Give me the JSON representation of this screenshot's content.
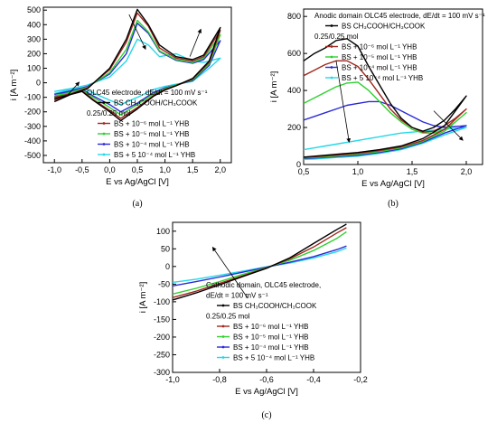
{
  "colors": {
    "series": [
      "#000000",
      "#a0281e",
      "#2fd02f",
      "#2a2ad8",
      "#25d7e8"
    ],
    "axis": "#000000"
  },
  "chart_data": [
    {
      "type": "line",
      "panel": "(a)",
      "xlabel": "E vs Ag/AgCl [V]",
      "ylabel": "i [A m⁻²]",
      "xlim": [
        -1.2,
        2.2
      ],
      "ylim": [
        -550,
        520
      ],
      "xticks": [
        -1.0,
        -0.5,
        0.0,
        0.5,
        1.0,
        1.5,
        2.0
      ],
      "xtick_labels": [
        "-1,0",
        "-0,5",
        "0,0",
        "0,5",
        "1,0",
        "1,5",
        "2,0"
      ],
      "yticks": [
        -500,
        -400,
        -300,
        -200,
        -100,
        0,
        100,
        200,
        300,
        400,
        500
      ],
      "ytick_labels": [
        "-500",
        "-400",
        "-300",
        "-200",
        "-100",
        "0",
        "100",
        "200",
        "300",
        "400",
        "500"
      ],
      "legend_title": [
        "OLC45 electrode, dE/dt = 100 mV s⁻¹",
        "0.25/0.25 mol"
      ],
      "legend_position": "lower-right",
      "series": [
        {
          "name": "BS CH₃COOH/CH₃COOK",
          "x": [
            -1.0,
            -0.7,
            -0.4,
            0.0,
            0.3,
            0.5,
            0.7,
            0.9,
            1.2,
            1.5,
            1.7,
            2.0,
            1.8,
            1.5,
            1.2,
            1.0,
            0.8,
            0.5,
            0.2,
            0.0,
            -0.3,
            -0.5,
            -0.7,
            -1.0
          ],
          "y": [
            -110,
            -80,
            -40,
            100,
            300,
            505,
            400,
            260,
            180,
            160,
            190,
            380,
            150,
            30,
            -20,
            -50,
            -90,
            -180,
            -260,
            -200,
            -120,
            -60,
            -80,
            -130
          ]
        },
        {
          "name": "BS + 10⁻⁶ mol L⁻¹ YHB",
          "x": [
            -1.0,
            -0.7,
            -0.4,
            0.0,
            0.3,
            0.5,
            0.7,
            0.9,
            1.2,
            1.5,
            1.7,
            2.0,
            1.8,
            1.5,
            1.2,
            1.0,
            0.8,
            0.5,
            0.2,
            0.0,
            -0.3,
            -0.5,
            -0.7,
            -1.0
          ],
          "y": [
            -100,
            -75,
            -35,
            90,
            280,
            480,
            390,
            240,
            170,
            150,
            180,
            360,
            140,
            25,
            -20,
            -45,
            -85,
            -170,
            -245,
            -190,
            -115,
            -55,
            -75,
            -120
          ]
        },
        {
          "name": "BS + 10⁻⁵ mol L⁻¹ YHB",
          "x": [
            -1.0,
            -0.7,
            -0.4,
            0.0,
            0.3,
            0.5,
            0.7,
            0.9,
            1.2,
            1.5,
            1.7,
            2.0,
            1.8,
            1.5,
            1.2,
            1.0,
            0.8,
            0.5,
            0.2,
            0.0,
            -0.3,
            -0.5,
            -0.7,
            -1.0
          ],
          "y": [
            -90,
            -65,
            -30,
            70,
            230,
            430,
            350,
            220,
            160,
            140,
            170,
            330,
            130,
            20,
            -15,
            -40,
            -75,
            -150,
            -220,
            -170,
            -100,
            -50,
            -65,
            -105
          ]
        },
        {
          "name": "BS + 10⁻⁴ mol L⁻¹ YHB",
          "x": [
            -1.0,
            -0.7,
            -0.4,
            0.0,
            0.3,
            0.5,
            0.7,
            0.9,
            1.2,
            1.5,
            1.7,
            2.0,
            1.8,
            1.5,
            1.2,
            1.0,
            0.8,
            0.5,
            0.2,
            0.0,
            -0.3,
            -0.5,
            -0.7,
            -1.0
          ],
          "y": [
            -80,
            -55,
            -25,
            60,
            200,
            410,
            340,
            215,
            155,
            135,
            160,
            290,
            120,
            15,
            -15,
            -35,
            -65,
            -140,
            -200,
            -150,
            -90,
            -45,
            -55,
            -95
          ]
        },
        {
          "name": "BS + 5 10⁻⁴ mol L⁻¹ YHB",
          "x": [
            -1.0,
            -0.7,
            -0.4,
            0.0,
            0.3,
            0.5,
            0.7,
            0.9,
            1.2,
            1.5,
            1.7,
            2.0,
            1.8,
            1.5,
            1.2,
            1.0,
            0.8,
            0.5,
            0.2,
            0.0,
            -0.3,
            -0.5,
            -0.7,
            -1.0
          ],
          "y": [
            -60,
            -40,
            -15,
            40,
            150,
            300,
            260,
            180,
            200,
            150,
            140,
            170,
            100,
            10,
            -10,
            -25,
            -45,
            -100,
            -150,
            -120,
            -70,
            -35,
            -45,
            -75
          ]
        }
      ],
      "arrows": [
        {
          "from": [
            -0.75,
            -80
          ],
          "to": [
            -0.55,
            5
          ]
        },
        {
          "from": [
            0.35,
            470
          ],
          "to": [
            0.65,
            230
          ]
        },
        {
          "from": [
            1.45,
            180
          ],
          "to": [
            1.65,
            370
          ]
        }
      ],
      "caption": "(a)"
    },
    {
      "type": "line",
      "panel": "(b)",
      "title": "Anodic domain OLC45 electrode, dE/dt = 100 mV s⁻¹",
      "xlabel": "E vs Ag/AgCl [V]",
      "ylabel": "i [A m⁻²]",
      "xlim": [
        0.5,
        2.15
      ],
      "ylim": [
        0,
        840
      ],
      "xticks": [
        0.5,
        1.0,
        1.5,
        2.0
      ],
      "xtick_labels": [
        "0,5",
        "1,0",
        "1,5",
        "2,0"
      ],
      "yticks": [
        0,
        200,
        400,
        600,
        800
      ],
      "ytick_labels": [
        "0",
        "200",
        "400",
        "600",
        "800"
      ],
      "legend_title": [
        "0.25/0.25 mol"
      ],
      "legend_position": "top-right",
      "series": [
        {
          "name": "BS CH₃COOH/CH₃COOK",
          "x": [
            0.5,
            0.6,
            0.7,
            0.8,
            0.9,
            1.0,
            1.1,
            1.2,
            1.3,
            1.4,
            1.5,
            1.6,
            1.7,
            1.8,
            1.9,
            2.0,
            1.8,
            1.6,
            1.4,
            1.2,
            1.0,
            0.8,
            0.6,
            0.5
          ],
          "y": [
            560,
            600,
            630,
            670,
            680,
            640,
            530,
            430,
            330,
            250,
            200,
            180,
            200,
            240,
            300,
            370,
            210,
            140,
            100,
            80,
            65,
            55,
            45,
            40
          ]
        },
        {
          "name": "BS + 10⁻⁶ mol L⁻¹ YHB",
          "x": [
            0.5,
            0.6,
            0.7,
            0.8,
            0.9,
            1.0,
            1.1,
            1.2,
            1.3,
            1.4,
            1.5,
            1.6,
            1.7,
            1.8,
            1.9,
            2.0,
            1.8,
            1.6,
            1.4,
            1.2,
            1.0,
            0.8,
            0.6,
            0.5
          ],
          "y": [
            480,
            510,
            540,
            560,
            560,
            530,
            460,
            380,
            300,
            240,
            200,
            175,
            180,
            210,
            250,
            300,
            190,
            130,
            95,
            75,
            60,
            50,
            42,
            38
          ]
        },
        {
          "name": "BS + 10⁻⁵ mol L⁻¹ YHB",
          "x": [
            0.5,
            0.6,
            0.7,
            0.8,
            0.9,
            1.0,
            1.1,
            1.2,
            1.3,
            1.4,
            1.5,
            1.6,
            1.7,
            1.8,
            1.9,
            2.0,
            1.8,
            1.6,
            1.4,
            1.2,
            1.0,
            0.8,
            0.6,
            0.5
          ],
          "y": [
            330,
            360,
            390,
            420,
            440,
            445,
            400,
            340,
            280,
            230,
            190,
            170,
            170,
            190,
            230,
            280,
            180,
            125,
            90,
            70,
            55,
            45,
            38,
            35
          ]
        },
        {
          "name": "BS + 10⁻⁴ mol L⁻¹ YHB",
          "x": [
            0.5,
            0.6,
            0.7,
            0.8,
            0.9,
            1.0,
            1.1,
            1.2,
            1.3,
            1.4,
            1.5,
            1.6,
            1.7,
            1.8,
            1.9,
            2.0,
            1.8,
            1.6,
            1.4,
            1.2,
            1.0,
            0.8,
            0.6,
            0.5
          ],
          "y": [
            240,
            260,
            280,
            300,
            320,
            330,
            340,
            340,
            320,
            290,
            260,
            230,
            210,
            200,
            205,
            210,
            170,
            120,
            85,
            65,
            50,
            42,
            35,
            32
          ]
        },
        {
          "name": "BS + 5 10⁻⁴ mol L⁻¹ YHB",
          "x": [
            0.5,
            0.6,
            0.7,
            0.8,
            0.9,
            1.0,
            1.1,
            1.2,
            1.3,
            1.4,
            1.5,
            1.6,
            1.7,
            1.8,
            1.9,
            2.0,
            1.8,
            1.6,
            1.4,
            1.2,
            1.0,
            0.8,
            0.6,
            0.5
          ],
          "y": [
            80,
            90,
            100,
            110,
            120,
            130,
            140,
            150,
            160,
            170,
            175,
            180,
            185,
            190,
            195,
            200,
            160,
            115,
            80,
            60,
            45,
            38,
            30,
            28
          ]
        }
      ],
      "arrows": [
        {
          "from": [
            0.8,
            560
          ],
          "to": [
            0.92,
            120
          ]
        },
        {
          "from": [
            1.7,
            290
          ],
          "to": [
            1.97,
            130
          ]
        }
      ],
      "caption": "(b)"
    },
    {
      "type": "line",
      "panel": "(c)",
      "title": "Cathodic domain, OLC45 electrode,",
      "xlabel": "E vs Ag/AgCl [V]",
      "ylabel": "i [A m⁻²]",
      "xlim": [
        -1.0,
        -0.2
      ],
      "ylim": [
        -300,
        125
      ],
      "xticks": [
        -1.0,
        -0.8,
        -0.6,
        -0.4,
        -0.2
      ],
      "xtick_labels": [
        "-1,0",
        "-0,8",
        "-0,6",
        "-0,4",
        "-0,2"
      ],
      "yticks": [
        -300,
        -250,
        -200,
        -150,
        -100,
        -50,
        0,
        50,
        100
      ],
      "ytick_labels": [
        "-300",
        "-250",
        "-200",
        "-150",
        "-100",
        "-50",
        "0",
        "50",
        "100"
      ],
      "legend_title": [
        "dE/dt = 100 mV s⁻¹",
        "0.25/0.25 mol"
      ],
      "legend_position": "lower-center",
      "series": [
        {
          "name": "BS CH₃COOH/CH₃COOK",
          "x": [
            -1.0,
            -0.9,
            -0.8,
            -0.7,
            -0.6,
            -0.5,
            -0.4,
            -0.3,
            -0.26
          ],
          "y": [
            -95,
            -75,
            -52,
            -28,
            -5,
            25,
            65,
            105,
            120
          ]
        },
        {
          "name": "BS + 10⁻⁶ mol L⁻¹ YHB",
          "x": [
            -1.0,
            -0.9,
            -0.8,
            -0.7,
            -0.6,
            -0.5,
            -0.4,
            -0.3,
            -0.26
          ],
          "y": [
            -88,
            -70,
            -48,
            -26,
            -4,
            22,
            55,
            95,
            110
          ]
        },
        {
          "name": "BS + 10⁻⁵ mol L⁻¹ YHB",
          "x": [
            -1.0,
            -0.9,
            -0.8,
            -0.7,
            -0.6,
            -0.5,
            -0.4,
            -0.3,
            -0.26
          ],
          "y": [
            -78,
            -62,
            -43,
            -22,
            -3,
            18,
            45,
            80,
            98
          ]
        },
        {
          "name": "BS + 10⁻⁴ mol L⁻¹ YHB",
          "x": [
            -1.0,
            -0.9,
            -0.8,
            -0.7,
            -0.6,
            -0.5,
            -0.4,
            -0.3,
            -0.26
          ],
          "y": [
            -55,
            -43,
            -30,
            -16,
            -2,
            12,
            28,
            48,
            58
          ]
        },
        {
          "name": "BS + 5 10⁻⁴ mol L⁻¹ YHB",
          "x": [
            -1.0,
            -0.9,
            -0.8,
            -0.7,
            -0.6,
            -0.5,
            -0.4,
            -0.3,
            -0.26
          ],
          "y": [
            -45,
            -36,
            -25,
            -13,
            -1,
            10,
            24,
            42,
            52
          ]
        }
      ],
      "arrows": [
        {
          "from": [
            -0.68,
            -90
          ],
          "to": [
            -0.83,
            55
          ]
        }
      ],
      "caption": "(c)"
    }
  ]
}
